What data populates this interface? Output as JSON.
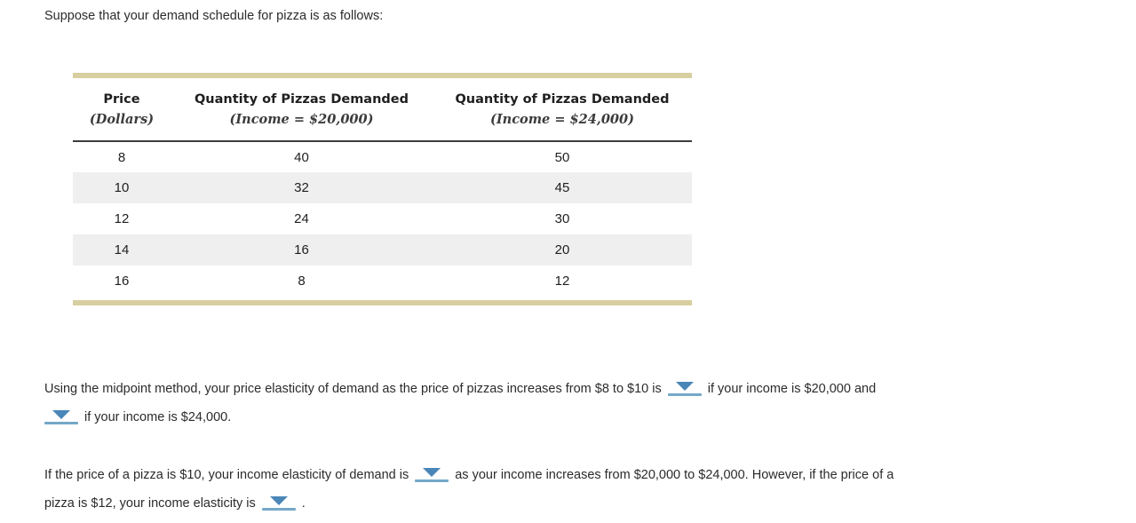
{
  "intro": "Suppose that your demand schedule for pizza is as follows:",
  "table": {
    "columns": [
      {
        "title": "Price",
        "subtitle": "(Dollars)"
      },
      {
        "title": "Quantity of Pizzas Demanded",
        "subtitle": "(Income = $20,000)"
      },
      {
        "title": "Quantity of Pizzas Demanded",
        "subtitle": "(Income = $24,000)"
      }
    ],
    "rows": [
      [
        "8",
        "40",
        "50"
      ],
      [
        "10",
        "32",
        "45"
      ],
      [
        "12",
        "24",
        "30"
      ],
      [
        "14",
        "16",
        "20"
      ],
      [
        "16",
        "8",
        "12"
      ]
    ]
  },
  "paragraph1": {
    "line1_before_dropdown": "Using the midpoint method, your price elasticity of demand as the price of pizzas increases from $8 to $10 is",
    "line1_after_dropdown": "if your income is $20,000 and",
    "line2_after_dropdown": "if your income is $24,000."
  },
  "paragraph2": {
    "line1_before_dropdown": "If the price of a pizza is $10, your income elasticity of demand is",
    "line1_after_dropdown": "as your income increases from $20,000 to $24,000. However, if the price of a",
    "line2_before_dropdown": "pizza is $12, your income elasticity is",
    "line2_after_dropdown": "."
  },
  "icons": {
    "dropdown_arrow": "triangle-down"
  },
  "colors": {
    "accent_bar": "#d8cfa0",
    "row_stripe": "#efefef",
    "dropdown_triangle": "#4a86b8",
    "dropdown_underline": "#74a8c8",
    "header_rule": "#3c3c3c",
    "text": "#2b2b2b"
  }
}
